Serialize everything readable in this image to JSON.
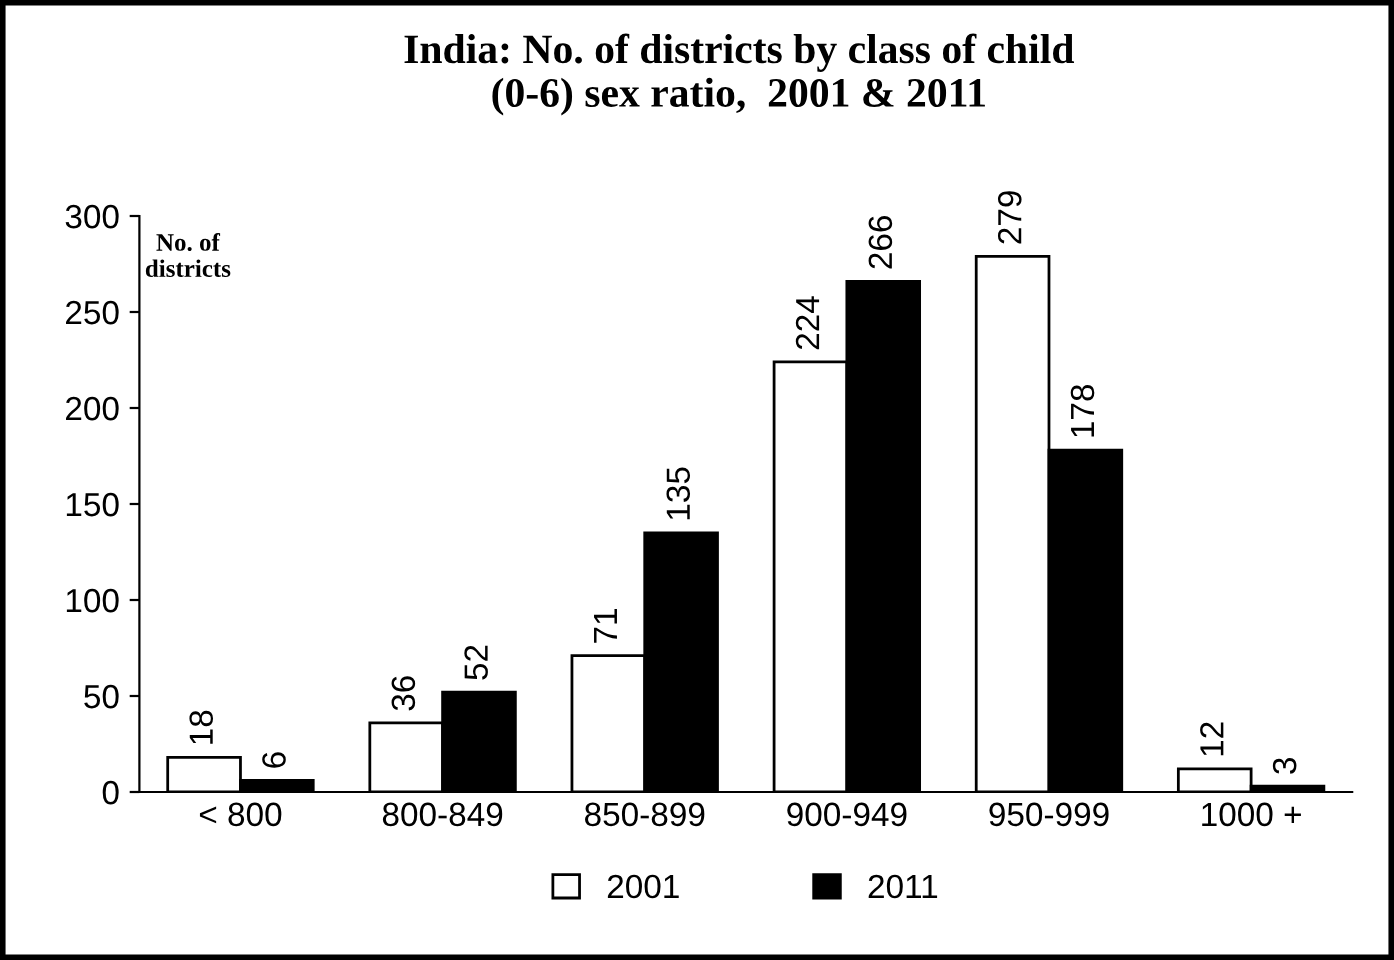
{
  "chart_data": {
    "type": "bar",
    "title": "India: No. of districts by class of child\n(0-6) sex ratio,  2001 & 2011",
    "ylabel": "No. of\ndistricts",
    "categories": [
      "< 800",
      "800-849",
      "850-899",
      "900-949",
      "950-999",
      "1000 +"
    ],
    "series": [
      {
        "name": "2001",
        "color": "#ffffff",
        "values": [
          18,
          36,
          71,
          224,
          279,
          12
        ]
      },
      {
        "name": "2011",
        "color": "#000000",
        "values": [
          6,
          52,
          135,
          266,
          178,
          3
        ]
      }
    ],
    "ylim": [
      0,
      300
    ],
    "yticks": [
      0,
      50,
      100,
      150,
      200,
      250,
      300
    ],
    "data_labels": true,
    "grid": false,
    "legend": "bottom"
  }
}
